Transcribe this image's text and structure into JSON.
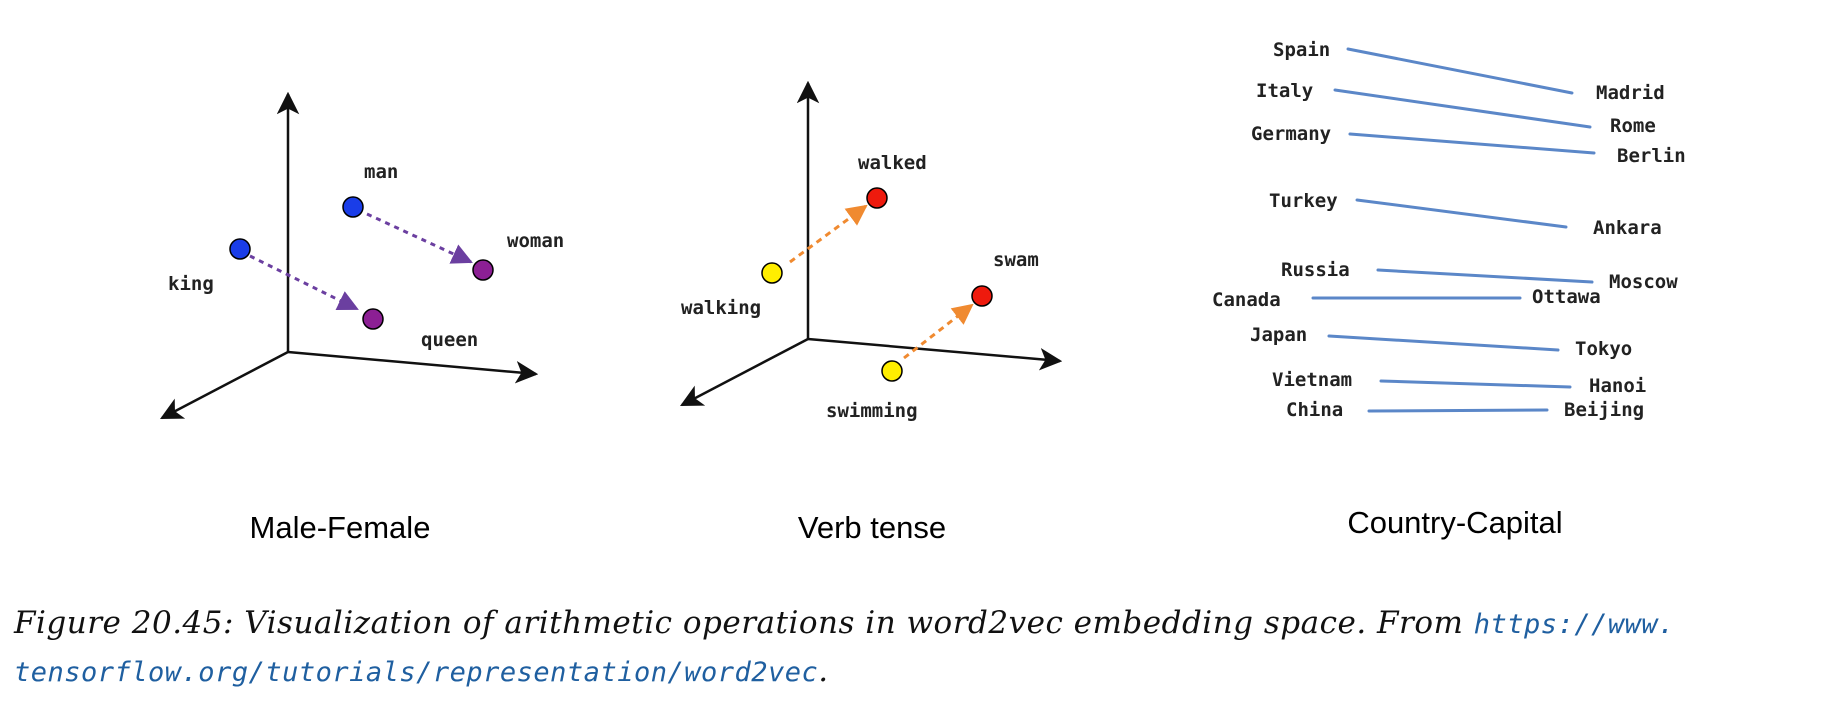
{
  "panels": {
    "male_female": {
      "title": "Male-Female",
      "words": [
        "man",
        "woman",
        "king",
        "queen"
      ],
      "colors": {
        "male": "#1a3de8",
        "female": "#8c1f94",
        "arrow": "#6b3fa0"
      }
    },
    "verb_tense": {
      "title": "Verb tense",
      "words": [
        "walked",
        "swam",
        "walking",
        "swimming"
      ],
      "colors": {
        "past": "#ee1a0d",
        "gerund": "#ffee00",
        "arrow": "#f08a30"
      }
    },
    "country_capital": {
      "title": "Country-Capital",
      "pairs": [
        {
          "country": "Spain",
          "capital": "Madrid"
        },
        {
          "country": "Italy",
          "capital": "Rome"
        },
        {
          "country": "Germany",
          "capital": "Berlin"
        },
        {
          "country": "Turkey",
          "capital": "Ankara"
        },
        {
          "country": "Russia",
          "capital": "Moscow"
        },
        {
          "country": "Canada",
          "capital": "Ottawa"
        },
        {
          "country": "Japan",
          "capital": "Tokyo"
        },
        {
          "country": "Vietnam",
          "capital": "Hanoi"
        },
        {
          "country": "China",
          "capital": "Beijing"
        }
      ],
      "colors": {
        "line": "#5b87c8"
      }
    }
  },
  "caption": {
    "text": "Figure 20.45: Visualization of arithmetic operations in word2vec embedding space. From ",
    "link_part1": "https://www.",
    "link_part2": "tensorflow.org/tutorials/representation/word2vec",
    "end": "."
  }
}
